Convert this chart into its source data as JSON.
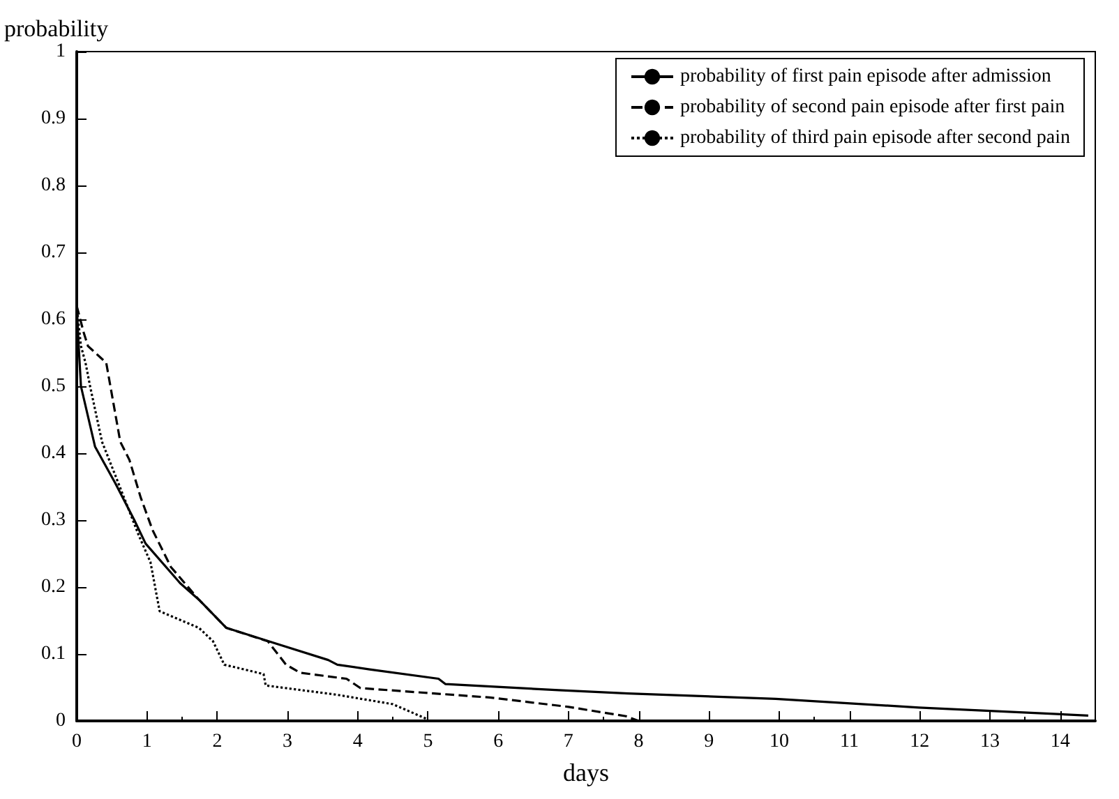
{
  "chart_data": {
    "type": "line",
    "xlabel": "days",
    "ylabel": "probability",
    "xlim": [
      0,
      14.5
    ],
    "ylim": [
      0,
      1
    ],
    "xticks": [
      0,
      1,
      2,
      3,
      4,
      5,
      6,
      7,
      8,
      9,
      10,
      11,
      12,
      13,
      14
    ],
    "yticks": [
      0,
      0.1,
      0.2,
      0.3,
      0.4,
      0.5,
      0.6,
      0.7,
      0.8,
      0.9,
      1
    ],
    "grid": false,
    "legend": "top right",
    "marker": "none",
    "series": [
      {
        "name": "probability of first pain episode after admission",
        "color": "#000000",
        "line_style": "solid",
        "x": [
          0,
          0.03,
          0.06,
          0.26,
          0.55,
          0.82,
          0.98,
          1.47,
          1.74,
          2.13,
          2.85,
          3.58,
          3.71,
          4.17,
          5.15,
          5.25,
          6.86,
          7.85,
          9.95,
          11.99,
          14.4
        ],
        "values": [
          0.62,
          0.556,
          0.5,
          0.41,
          0.355,
          0.3,
          0.265,
          0.206,
          0.181,
          0.139,
          0.115,
          0.091,
          0.084,
          0.077,
          0.063,
          0.055,
          0.046,
          0.041,
          0.033,
          0.02,
          0.008
        ]
      },
      {
        "name": "probability of second pain episode after first pain",
        "color": "#000000",
        "line_style": "dashed",
        "x": [
          0,
          0.1,
          0.16,
          0.42,
          0.62,
          0.75,
          0.91,
          1.08,
          1.34,
          1.74,
          2.13,
          2.72,
          2.98,
          3.18,
          3.84,
          4.04,
          5.88,
          7.0,
          7.82,
          8.0
        ],
        "values": [
          0.62,
          0.58,
          0.56,
          0.535,
          0.417,
          0.39,
          0.334,
          0.285,
          0.23,
          0.181,
          0.139,
          0.119,
          0.084,
          0.072,
          0.063,
          0.049,
          0.035,
          0.021,
          0.007,
          0
        ]
      },
      {
        "name": "probability of third pain episode after second pain",
        "color": "#000000",
        "line_style": "dotted",
        "x": [
          0,
          0.06,
          0.125,
          0.19,
          0.36,
          0.62,
          0.88,
          1.05,
          1.18,
          1.74,
          1.94,
          2.1,
          2.66,
          2.69,
          3.71,
          4.5,
          4.96,
          5.0
        ],
        "values": [
          0.62,
          0.56,
          0.535,
          0.5,
          0.417,
          0.348,
          0.278,
          0.237,
          0.164,
          0.139,
          0.119,
          0.084,
          0.07,
          0.053,
          0.039,
          0.025,
          0.004,
          0
        ]
      }
    ]
  }
}
